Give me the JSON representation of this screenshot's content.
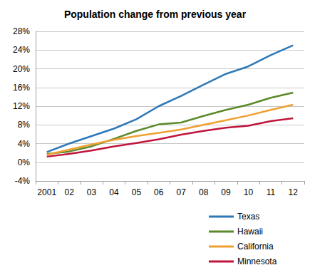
{
  "chart_data": {
    "type": "line",
    "title": "Population change from previous year",
    "categories": [
      "2001",
      "02",
      "03",
      "04",
      "05",
      "06",
      "07",
      "08",
      "09",
      "10",
      "11",
      "12"
    ],
    "series": [
      {
        "name": "Texas",
        "color": "#2e78b8",
        "values": [
          2.2,
          4.0,
          5.6,
          7.2,
          9.2,
          12.0,
          14.2,
          16.6,
          18.9,
          20.5,
          22.9,
          25.0
        ]
      },
      {
        "name": "Hawaii",
        "color": "#5b8a2b",
        "values": [
          1.8,
          2.3,
          3.4,
          5.0,
          6.7,
          8.1,
          8.5,
          9.9,
          11.2,
          12.3,
          13.8,
          14.9
        ]
      },
      {
        "name": "California",
        "color": "#f0a030",
        "values": [
          1.6,
          2.7,
          3.8,
          4.8,
          5.6,
          6.3,
          7.0,
          8.0,
          9.0,
          10.0,
          11.2,
          12.3
        ]
      },
      {
        "name": "Minnesota",
        "color": "#c0143c",
        "values": [
          1.2,
          1.8,
          2.5,
          3.4,
          4.1,
          4.9,
          5.9,
          6.7,
          7.4,
          7.8,
          8.8,
          9.4
        ]
      }
    ],
    "ylim": [
      -4,
      28
    ],
    "yticks": [
      {
        "value": -4,
        "label": "-4%"
      },
      {
        "value": 0,
        "label": "0%"
      },
      {
        "value": 4,
        "label": "4%"
      },
      {
        "value": 8,
        "label": "8%"
      },
      {
        "value": 12,
        "label": "12%"
      },
      {
        "value": 16,
        "label": "16%"
      },
      {
        "value": 20,
        "label": "20%"
      },
      {
        "value": 24,
        "label": "24%"
      },
      {
        "value": 28,
        "label": "28%"
      }
    ],
    "grid": true,
    "legend": "bottom-right"
  }
}
